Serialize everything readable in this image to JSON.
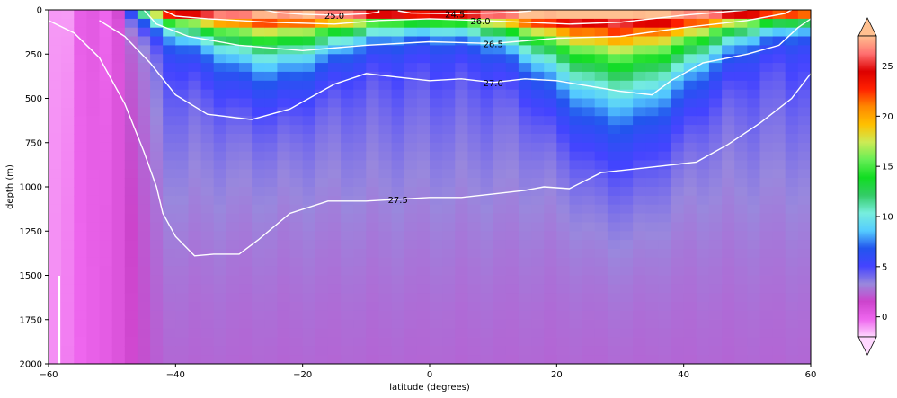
{
  "chart_data": {
    "type": "heatmap",
    "title": "",
    "xlabel": "latitude (degrees)",
    "ylabel": "depth (m)",
    "xlim": [
      -60,
      60
    ],
    "ylim": [
      2000,
      0
    ],
    "x_ticks": [
      -60,
      -40,
      -20,
      0,
      20,
      40,
      60
    ],
    "y_ticks": [
      0,
      250,
      500,
      750,
      1000,
      1250,
      1500,
      1750,
      2000
    ],
    "x_tick_labels": [
      "−60",
      "−40",
      "−20",
      "0",
      "20",
      "40",
      "60"
    ],
    "y_tick_labels": [
      "0",
      "250",
      "500",
      "750",
      "1000",
      "1250",
      "1500",
      "1750",
      "2000"
    ],
    "colorbar": {
      "ticks": [
        0,
        5,
        10,
        15,
        20,
        25
      ],
      "range": [
        -2,
        28
      ],
      "extend": "both",
      "colors": [
        "#ffd8ff",
        "#ee66ee",
        "#cc44cc",
        "#9988dd",
        "#4444ff",
        "#2255ee",
        "#55ccff",
        "#77eedd",
        "#33cc66",
        "#11dd22",
        "#66ee55",
        "#cceb55",
        "#ffc000",
        "#ff8800",
        "#ff2000",
        "#dd0000",
        "#ff7070",
        "#ffc090"
      ]
    },
    "contours": [
      {
        "label": "24.5",
        "level": 24.5,
        "points": [
          [
            -5,
            5
          ],
          [
            -3,
            18
          ],
          [
            0,
            20
          ],
          [
            4,
            22
          ],
          [
            10,
            18
          ],
          [
            14,
            12
          ],
          [
            16,
            5
          ]
        ]
      },
      {
        "label": "25.0",
        "level": 25.0,
        "points": [
          [
            -26,
            0
          ],
          [
            -24,
            15
          ],
          [
            -20,
            25
          ],
          [
            -15,
            30
          ],
          [
            -10,
            22
          ],
          [
            -8,
            12
          ],
          [
            -8,
            0
          ]
        ]
      },
      {
        "label": "26.0",
        "level": 26.0,
        "points": [
          [
            -42,
            0
          ],
          [
            -40,
            35
          ],
          [
            -35,
            50
          ],
          [
            -25,
            70
          ],
          [
            -15,
            80
          ],
          [
            -8,
            60
          ],
          [
            0,
            50
          ],
          [
            8,
            60
          ],
          [
            15,
            70
          ],
          [
            22,
            80
          ],
          [
            30,
            70
          ],
          [
            40,
            30
          ],
          [
            45,
            15
          ],
          [
            50,
            0
          ]
        ]
      },
      {
        "label": "26.5",
        "level": 26.5,
        "points": [
          [
            -45,
            0
          ],
          [
            -43,
            80
          ],
          [
            -38,
            150
          ],
          [
            -30,
            200
          ],
          [
            -20,
            230
          ],
          [
            -10,
            200
          ],
          [
            0,
            180
          ],
          [
            10,
            190
          ],
          [
            20,
            160
          ],
          [
            30,
            150
          ],
          [
            40,
            100
          ],
          [
            50,
            60
          ],
          [
            56,
            20
          ],
          [
            57,
            0
          ]
        ]
      },
      {
        "label": "27.0",
        "level": 27.0,
        "points": [
          [
            -52,
            60
          ],
          [
            -48,
            150
          ],
          [
            -44,
            300
          ],
          [
            -40,
            480
          ],
          [
            -35,
            590
          ],
          [
            -28,
            620
          ],
          [
            -22,
            560
          ],
          [
            -15,
            420
          ],
          [
            -10,
            360
          ],
          [
            -5,
            380
          ],
          [
            0,
            400
          ],
          [
            5,
            390
          ],
          [
            10,
            410
          ],
          [
            15,
            390
          ],
          [
            20,
            400
          ],
          [
            25,
            430
          ],
          [
            30,
            460
          ],
          [
            35,
            480
          ],
          [
            38,
            400
          ],
          [
            43,
            300
          ],
          [
            50,
            250
          ],
          [
            55,
            200
          ],
          [
            58,
            100
          ],
          [
            60,
            50
          ]
        ]
      },
      {
        "label": "27.5",
        "level": 27.5,
        "points": [
          [
            -60,
            60
          ],
          [
            -56,
            130
          ],
          [
            -52,
            270
          ],
          [
            -48,
            530
          ],
          [
            -45,
            800
          ],
          [
            -43,
            1000
          ],
          [
            -42,
            1150
          ],
          [
            -40,
            1280
          ],
          [
            -37,
            1390
          ],
          [
            -34,
            1380
          ],
          [
            -30,
            1380
          ],
          [
            -27,
            1300
          ],
          [
            -22,
            1150
          ],
          [
            -16,
            1080
          ],
          [
            -10,
            1080
          ],
          [
            -5,
            1070
          ],
          [
            0,
            1060
          ],
          [
            5,
            1060
          ],
          [
            10,
            1040
          ],
          [
            15,
            1020
          ],
          [
            18,
            1000
          ],
          [
            22,
            1010
          ],
          [
            27,
            920
          ],
          [
            32,
            900
          ],
          [
            37,
            880
          ],
          [
            42,
            860
          ],
          [
            47,
            760
          ],
          [
            52,
            640
          ],
          [
            57,
            500
          ],
          [
            60,
            360
          ]
        ]
      }
    ]
  }
}
